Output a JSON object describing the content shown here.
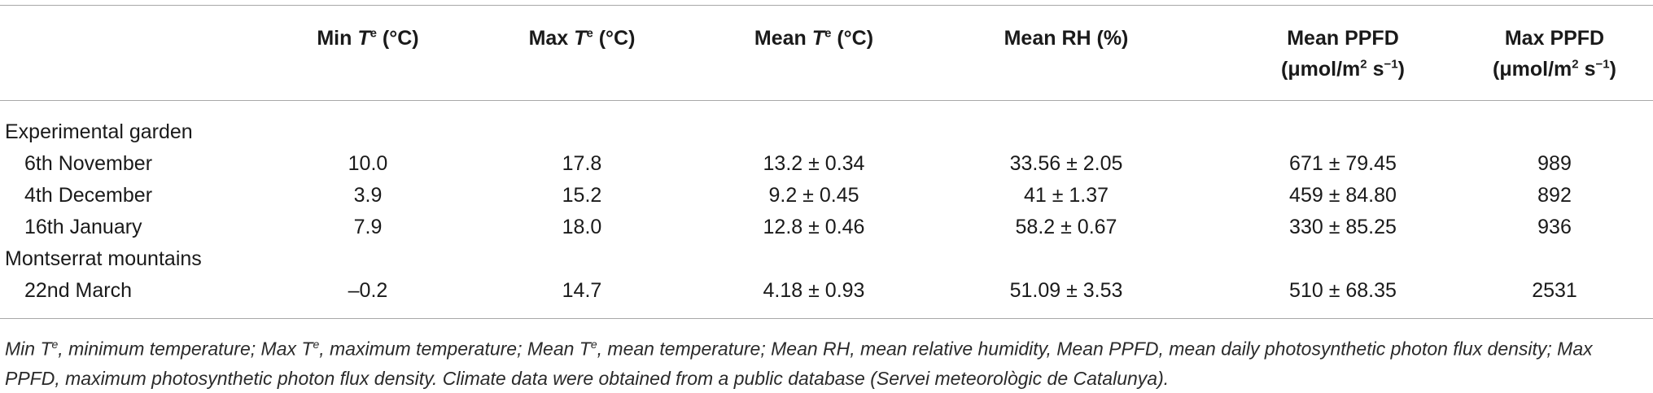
{
  "headers": {
    "min_te": {
      "pre": "Min ",
      "var": "T",
      "sup": "e",
      "post": " (°C)"
    },
    "max_te": {
      "pre": "Max ",
      "var": "T",
      "sup": "e",
      "post": " (°C)"
    },
    "mean_te": {
      "pre": "Mean ",
      "var": "T",
      "sup": "e",
      "post": " (°C)"
    },
    "mean_rh": "Mean RH (%)",
    "mean_ppfd": {
      "line1": "Mean PPFD",
      "unit_pre": "(μmol/m",
      "unit_sup": "2",
      "unit_mid": " s",
      "unit_sup2": "−1",
      "unit_post": ")"
    },
    "max_ppfd": {
      "line1": "Max PPFD",
      "unit_pre": "(μmol/m",
      "unit_sup": "2",
      "unit_mid": " s",
      "unit_sup2": "−1",
      "unit_post": ")"
    }
  },
  "groups": [
    {
      "name": "Experimental garden",
      "rows": [
        {
          "label": "6th November",
          "min": "10.0",
          "max": "17.8",
          "mean": "13.2 ± 0.34",
          "rh": "33.56 ± 2.05",
          "mean_ppfd": "671 ± 79.45",
          "max_ppfd": "989"
        },
        {
          "label": "4th December",
          "min": "3.9",
          "max": "15.2",
          "mean": "9.2 ± 0.45",
          "rh": "41 ± 1.37",
          "mean_ppfd": "459 ± 84.80",
          "max_ppfd": "892"
        },
        {
          "label": "16th January",
          "min": "7.9",
          "max": "18.0",
          "mean": "12.8 ± 0.46",
          "rh": "58.2 ± 0.67",
          "mean_ppfd": "330 ± 85.25",
          "max_ppfd": "936"
        }
      ]
    },
    {
      "name": "Montserrat mountains",
      "rows": [
        {
          "label": "22nd March",
          "min": "–0.2",
          "max": "14.7",
          "mean": "4.18 ± 0.93",
          "rh": "51.09 ± 3.53",
          "mean_ppfd": "510 ± 68.35",
          "max_ppfd": "2531"
        }
      ]
    }
  ],
  "footnote": {
    "p1": "Min T",
    "s1": "e",
    "p2": ", minimum temperature; Max T",
    "s2": "e",
    "p3": ", maximum temperature; Mean T",
    "s3": "e",
    "p4": ", mean temperature; Mean RH, mean relative humidity, Mean PPFD, mean daily photosynthetic photon flux density; Max PPFD, maximum photosynthetic photon flux density. Climate data were obtained from a public database (Servei meteorològic de Catalunya)."
  }
}
